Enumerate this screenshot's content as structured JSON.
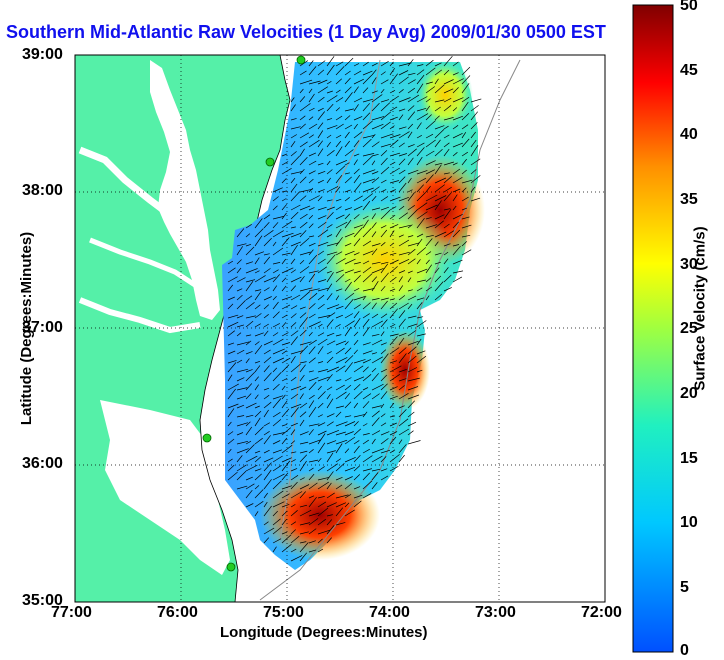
{
  "title": "Southern Mid-Atlantic Raw Velocities (1 Day Avg) 2009/01/30 0500 EST",
  "axes": {
    "xlabel": "Longitude (Degrees:Minutes)",
    "ylabel": "Latitude (Degrees:Minutes)",
    "xticks": [
      "77:00",
      "76:00",
      "75:00",
      "74:00",
      "73:00",
      "72:00"
    ],
    "yticks": [
      "39:00",
      "38:00",
      "37:00",
      "36:00",
      "35:00"
    ]
  },
  "colorbar": {
    "label": "Surface Velocity (cm/s)",
    "ticks": [
      "50",
      "45",
      "40",
      "35",
      "30",
      "25",
      "20",
      "15",
      "10",
      "5",
      "0"
    ],
    "min": 0,
    "max": 50
  },
  "colors": {
    "land": "#55f0a8",
    "title": "#1010ee",
    "site": "#22cc22"
  }
}
